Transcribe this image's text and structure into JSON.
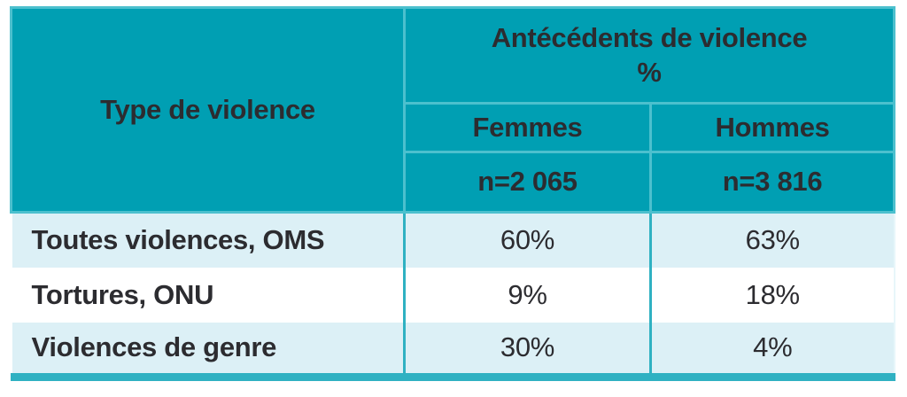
{
  "colors": {
    "header_teal": "#009fb3",
    "header_separator": "#4cc0ce",
    "body_divider_teal": "#2fb1c2",
    "bottom_bar_teal": "#2fb1c2",
    "alt_row_blue": "#dcf0f6",
    "text_dark": "#2c2c30"
  },
  "table": {
    "corner_header": "Type de violence",
    "group_header_line1": "Antécédents de violence",
    "group_header_line2": "%",
    "columns": [
      {
        "label": "Femmes",
        "n_label": "n=2 065"
      },
      {
        "label": "Hommes",
        "n_label": "n=3 816"
      }
    ],
    "rows": [
      {
        "label": "Toutes violences, OMS",
        "femmes": "60%",
        "hommes": "63%"
      },
      {
        "label": "Tortures, ONU",
        "femmes": "9%",
        "hommes": "18%"
      },
      {
        "label": "Violences de genre",
        "femmes": "30%",
        "hommes": "4%"
      }
    ]
  },
  "chart_data": {
    "type": "table",
    "title": "Antécédents de violence (%)",
    "categories": [
      "Toutes violences, OMS",
      "Tortures, ONU",
      "Violences de genre"
    ],
    "series": [
      {
        "name": "Femmes (n=2 065)",
        "values": [
          60,
          9,
          30
        ]
      },
      {
        "name": "Hommes (n=3 816)",
        "values": [
          63,
          18,
          4
        ]
      }
    ],
    "unit": "%"
  }
}
